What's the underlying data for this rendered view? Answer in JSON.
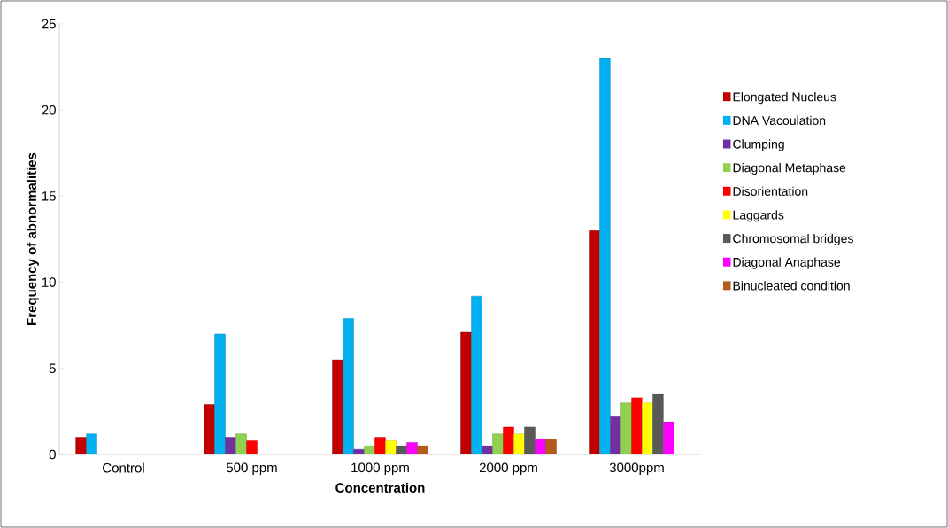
{
  "chart_data": {
    "type": "bar",
    "xlabel": "Concentration",
    "ylabel": "Frequency of abnormalities",
    "categories": [
      "Control",
      "500 ppm",
      "1000 ppm",
      "2000 ppm",
      "3000ppm"
    ],
    "series": [
      {
        "name": "Elongated Nucleus",
        "color": "#c00000",
        "values": [
          1,
          2.9,
          5.5,
          7.1,
          13
        ]
      },
      {
        "name": "DNA Vacoulation",
        "color": "#00b0f0",
        "values": [
          1.2,
          7,
          7.9,
          9.2,
          23
        ]
      },
      {
        "name": "Clumping",
        "color": "#7030a0",
        "values": [
          null,
          1,
          0.3,
          0.5,
          2.2
        ]
      },
      {
        "name": "Diagonal Metaphase",
        "color": "#92d050",
        "values": [
          null,
          1.2,
          0.5,
          1.2,
          3
        ]
      },
      {
        "name": "Disorientation",
        "color": "#ff0000",
        "values": [
          null,
          0.8,
          1,
          1.6,
          3.3
        ]
      },
      {
        "name": "Laggards",
        "color": "#ffff00",
        "values": [
          null,
          null,
          0.8,
          1.2,
          3
        ]
      },
      {
        "name": "Chromosomal bridges",
        "color": "#595959",
        "values": [
          null,
          null,
          0.5,
          1.6,
          3.5
        ]
      },
      {
        "name": "Diagonal Anaphase",
        "color": "#ff00ff",
        "values": [
          null,
          null,
          0.7,
          0.9,
          1.9
        ]
      },
      {
        "name": "Binucleated condition",
        "color": "#b35a1f",
        "values": [
          null,
          null,
          0.5,
          0.9,
          null
        ]
      }
    ],
    "ylim": [
      0,
      25
    ],
    "yticks": [
      0,
      5,
      10,
      15,
      20,
      25
    ],
    "legend": "right",
    "grid": false
  }
}
